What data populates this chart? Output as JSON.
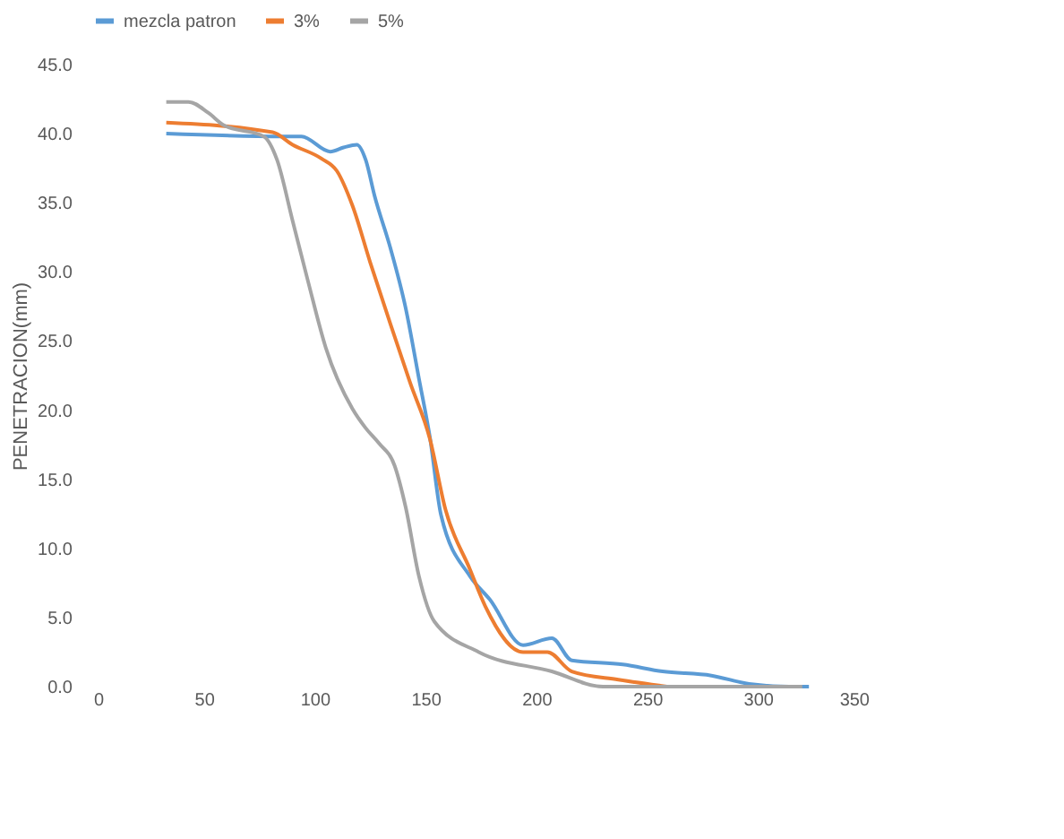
{
  "chart_data": {
    "type": "line",
    "ylabel": "PENETRACION(mm)",
    "xlim": [
      0,
      350
    ],
    "xticks": [
      0,
      50,
      100,
      150,
      200,
      250,
      300,
      350
    ],
    "ylim": [
      0,
      45
    ],
    "yticks": [
      {
        "value": 0,
        "label": "0.0"
      },
      {
        "value": 5,
        "label": "5.0"
      },
      {
        "value": 10,
        "label": "10.0"
      },
      {
        "value": 15,
        "label": "15.0"
      },
      {
        "value": 20,
        "label": "20.0"
      },
      {
        "value": 25,
        "label": "25.0"
      },
      {
        "value": 30,
        "label": "30.0"
      },
      {
        "value": 35,
        "label": "35.0"
      },
      {
        "value": 40,
        "label": "40.0"
      },
      {
        "value": 45,
        "label": "45.0"
      }
    ],
    "grid": false,
    "legend": "top",
    "marker": "none",
    "line_style": "solid",
    "series": [
      {
        "name": "mezcla patron",
        "color": "#5b9bd5",
        "x": [
          33,
          85,
          94,
          107,
          113,
          119,
          123,
          127,
          134,
          141,
          147,
          152,
          157,
          170,
          179,
          194,
          207,
          216,
          239,
          257,
          279,
          296,
          314,
          323
        ],
        "values": [
          40.0,
          39.8,
          39.8,
          38.7,
          39.0,
          39.2,
          38.1,
          35.5,
          31.8,
          27.4,
          22.3,
          18.0,
          12.4,
          8.0,
          6.3,
          3.0,
          3.5,
          1.9,
          1.6,
          1.1,
          0.8,
          0.2,
          0.0,
          0.0
        ]
      },
      {
        "name": "3%",
        "color": "#ed7d31",
        "x": [
          33,
          81,
          90,
          103,
          110,
          117,
          125,
          134,
          143,
          152,
          159,
          170,
          177,
          194,
          205,
          216,
          237,
          259
        ],
        "values": [
          40.8,
          40.1,
          39.2,
          38.2,
          37.3,
          34.8,
          30.7,
          26.3,
          22.0,
          17.9,
          12.8,
          8.5,
          5.8,
          2.5,
          2.5,
          1.1,
          0.5,
          0.0
        ]
      },
      {
        "name": "5%",
        "color": "#a5a5a5",
        "x": [
          33,
          43,
          52,
          59,
          77,
          83,
          90,
          97,
          105,
          117,
          123,
          129,
          136,
          141,
          147,
          154,
          174,
          207,
          230,
          320
        ],
        "values": [
          42.3,
          42.3,
          41.5,
          40.6,
          39.8,
          38.1,
          33.7,
          29.3,
          24.5,
          20.1,
          18.7,
          17.6,
          16.0,
          13.0,
          8.0,
          4.7,
          2.5,
          1.1,
          0.0,
          0.0
        ]
      }
    ]
  }
}
